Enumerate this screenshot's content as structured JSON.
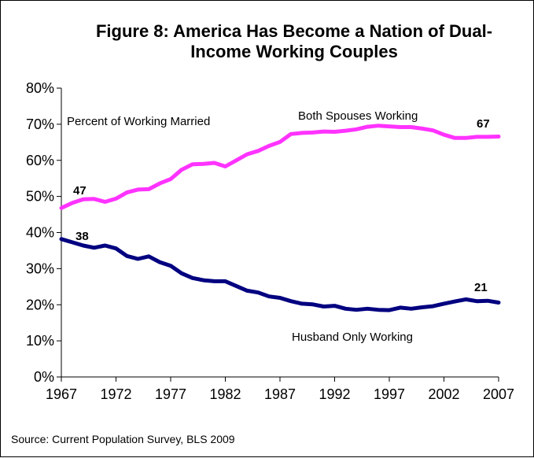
{
  "chart_data": {
    "type": "line",
    "title_lines": [
      "Figure 8: America Has Become a Nation of Dual-",
      "Income Working Couples"
    ],
    "subtitle": "Percent of Working Married",
    "source": "Source: Current Population Survey, BLS 2009",
    "xlim": [
      1967,
      2007
    ],
    "ylim": [
      0,
      80
    ],
    "x_ticks": [
      1967,
      1972,
      1977,
      1982,
      1987,
      1992,
      1997,
      2002,
      2007
    ],
    "x_tick_labels": [
      "1967",
      "1972",
      "1977",
      "1982",
      "1987",
      "1992",
      "1997",
      "2002",
      "2007"
    ],
    "y_ticks": [
      0,
      10,
      20,
      30,
      40,
      50,
      60,
      70,
      80
    ],
    "y_tick_labels": [
      "0%",
      "10%",
      "20%",
      "30%",
      "40%",
      "50%",
      "60%",
      "70%",
      "80%"
    ],
    "grid": false,
    "x": [
      1967,
      1968,
      1969,
      1970,
      1971,
      1972,
      1973,
      1974,
      1975,
      1976,
      1977,
      1978,
      1979,
      1980,
      1981,
      1982,
      1983,
      1984,
      1985,
      1986,
      1987,
      1988,
      1989,
      1990,
      1991,
      1992,
      1993,
      1994,
      1995,
      1996,
      1997,
      1998,
      1999,
      2000,
      2001,
      2002,
      2003,
      2004,
      2005,
      2006,
      2007
    ],
    "series": [
      {
        "name": "Both Spouses Working",
        "color": "#ff33ff",
        "values": [
          46.8,
          48.2,
          49.2,
          49.3,
          48.5,
          49.4,
          51.1,
          51.9,
          52.0,
          53.6,
          54.8,
          57.4,
          58.9,
          59.0,
          59.3,
          58.3,
          60.0,
          61.7,
          62.6,
          64.0,
          65.1,
          67.3,
          67.6,
          67.7,
          68.0,
          67.9,
          68.2,
          68.6,
          69.3,
          69.6,
          69.4,
          69.2,
          69.2,
          68.8,
          68.3,
          67.1,
          66.2,
          66.2,
          66.5,
          66.5,
          66.6
        ],
        "label": "Both Spouses Working",
        "start_label": "47",
        "end_label": "67"
      },
      {
        "name": "Husband Only Working",
        "color": "#000080",
        "values": [
          38.2,
          37.3,
          36.4,
          35.8,
          36.4,
          35.6,
          33.5,
          32.7,
          33.4,
          31.8,
          30.8,
          28.7,
          27.4,
          26.8,
          26.5,
          26.5,
          25.2,
          23.9,
          23.4,
          22.3,
          21.9,
          21.0,
          20.3,
          20.1,
          19.5,
          19.7,
          18.9,
          18.6,
          18.9,
          18.6,
          18.5,
          19.2,
          18.9,
          19.3,
          19.6,
          20.3,
          20.9,
          21.5,
          21.0,
          21.1,
          20.6
        ],
        "label": "Husband Only Working",
        "start_label": "38",
        "end_label": "21"
      }
    ]
  }
}
